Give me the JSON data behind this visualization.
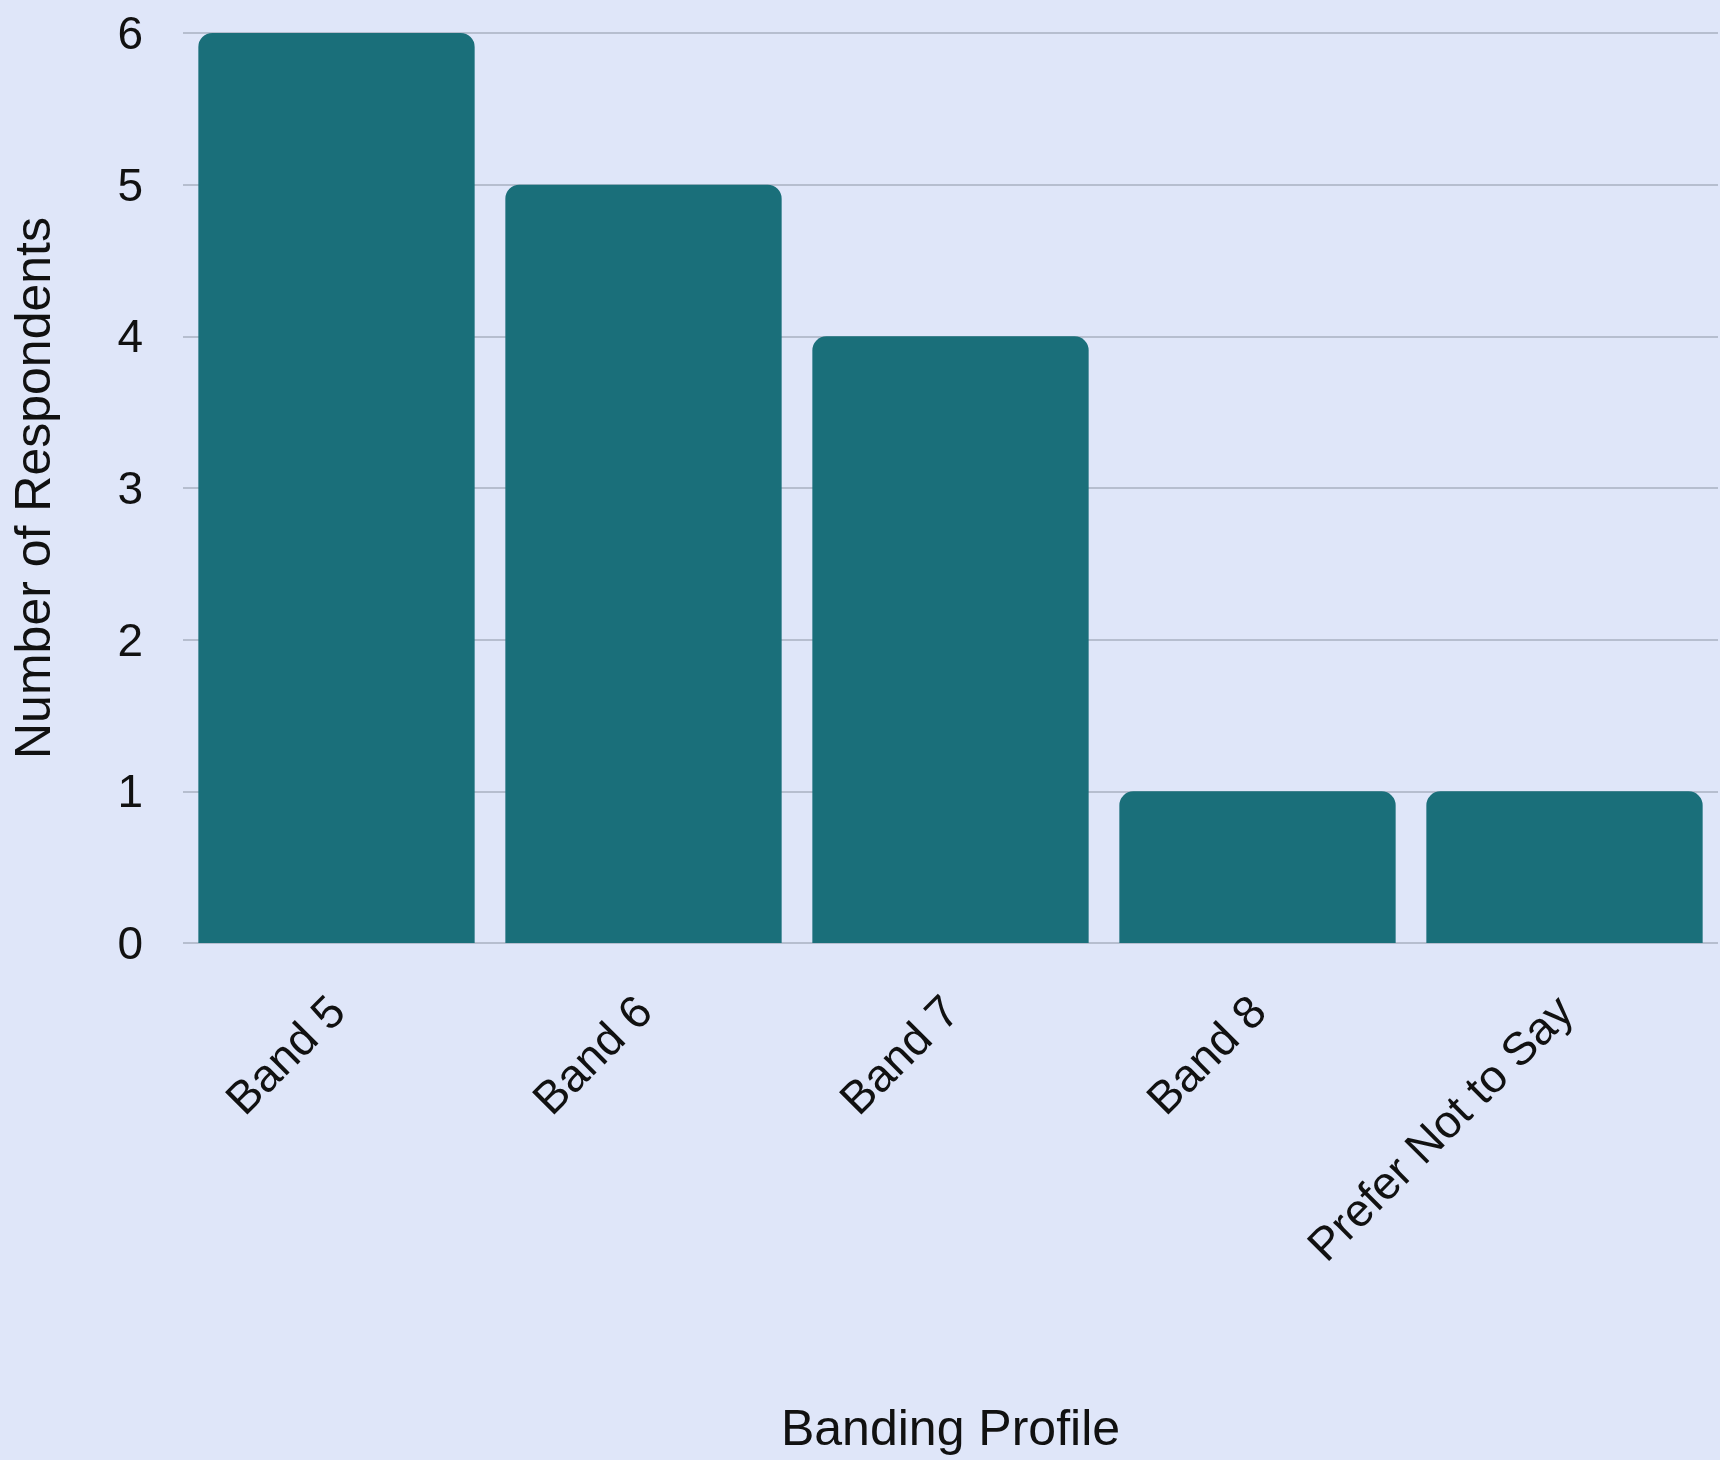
{
  "chart_data": {
    "type": "bar",
    "xlabel": "Banding Profile",
    "ylabel": "Number of Respondents",
    "categories": [
      "Band 5",
      "Band 6",
      "Band 7",
      "Band 8",
      "Prefer Not to Say"
    ],
    "values": [
      6,
      5,
      4,
      1,
      1
    ],
    "color": "#1a6f7a",
    "ylim": [
      0,
      6
    ],
    "yticks": [
      0,
      1,
      2,
      3,
      4,
      5,
      6
    ],
    "grid": "y"
  }
}
